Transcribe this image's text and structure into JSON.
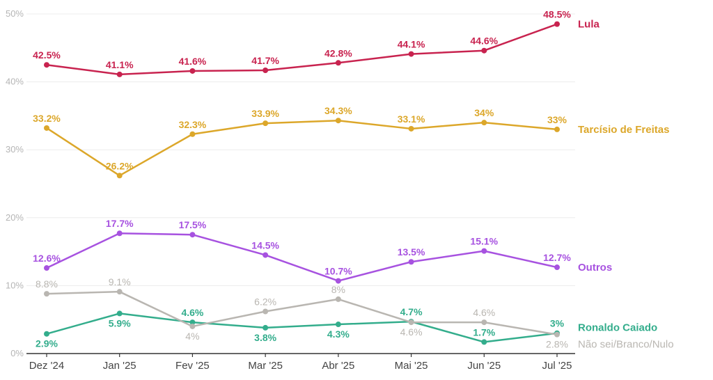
{
  "chart_data": {
    "type": "line",
    "title": "",
    "xlabel": "",
    "ylabel": "",
    "ylim": [
      0,
      50
    ],
    "yticks": [
      0,
      10,
      20,
      30,
      40,
      50
    ],
    "ytick_labels": [
      "0%",
      "10%",
      "20%",
      "30%",
      "40%",
      "50%"
    ],
    "grid": true,
    "legend_placement": "right (inline at line ends)",
    "categories": [
      "Dez '24",
      "Jan '25",
      "Fev '25",
      "Mar '25",
      "Abr '25",
      "Mai '25",
      "Jun '25",
      "Jul '25"
    ],
    "series": [
      {
        "name": "Lula",
        "color": "#c8234f",
        "values": [
          42.5,
          41.1,
          41.6,
          41.7,
          42.8,
          44.1,
          44.6,
          48.5
        ],
        "labels": [
          "42.5%",
          "41.1%",
          "41.6%",
          "41.7%",
          "42.8%",
          "44.1%",
          "44.6%",
          "48.5%"
        ],
        "label_pos": [
          "above",
          "above",
          "above",
          "above",
          "above",
          "above",
          "above",
          "above"
        ],
        "style": "bold"
      },
      {
        "name": "Tarcísio de Freitas",
        "color": "#dca72a",
        "values": [
          33.2,
          26.2,
          32.3,
          33.9,
          34.3,
          33.1,
          34,
          33
        ],
        "labels": [
          "33.2%",
          "26.2%",
          "32.3%",
          "33.9%",
          "34.3%",
          "33.1%",
          "34%",
          "33%"
        ],
        "label_pos": [
          "above",
          "above",
          "above",
          "above",
          "above",
          "above",
          "above",
          "above"
        ],
        "style": "bold"
      },
      {
        "name": "Outros",
        "color": "#a752e0",
        "values": [
          12.6,
          17.7,
          17.5,
          14.5,
          10.7,
          13.5,
          15.1,
          12.7
        ],
        "labels": [
          "12.6%",
          "17.7%",
          "17.5%",
          "14.5%",
          "10.7%",
          "13.5%",
          "15.1%",
          "12.7%"
        ],
        "label_pos": [
          "above",
          "above",
          "above",
          "above",
          "above",
          "above",
          "above",
          "above"
        ],
        "style": "bold"
      },
      {
        "name": "Ronaldo Caiado",
        "color": "#33ad8c",
        "values": [
          2.9,
          5.9,
          4.6,
          3.8,
          4.3,
          4.7,
          1.7,
          3
        ],
        "labels": [
          "2.9%",
          "5.9%",
          "4.6%",
          "3.8%",
          "4.3%",
          "4.7%",
          "1.7%",
          "3%"
        ],
        "label_pos": [
          "below",
          "below",
          "above",
          "below",
          "below",
          "above",
          "above",
          "above"
        ],
        "style": "bold"
      },
      {
        "name": "Não sei/Branco/Nulo",
        "color": "#b9b6b1",
        "values": [
          8.8,
          9.1,
          4,
          6.2,
          8,
          4.6,
          4.6,
          2.8
        ],
        "labels": [
          "8.8%",
          "9.1%",
          "4%",
          "6.2%",
          "8%",
          "4.6%",
          "4.6%",
          "2.8%"
        ],
        "label_pos": [
          "above",
          "above",
          "below",
          "above",
          "above",
          "below",
          "above",
          "below"
        ],
        "style": "light"
      }
    ]
  }
}
